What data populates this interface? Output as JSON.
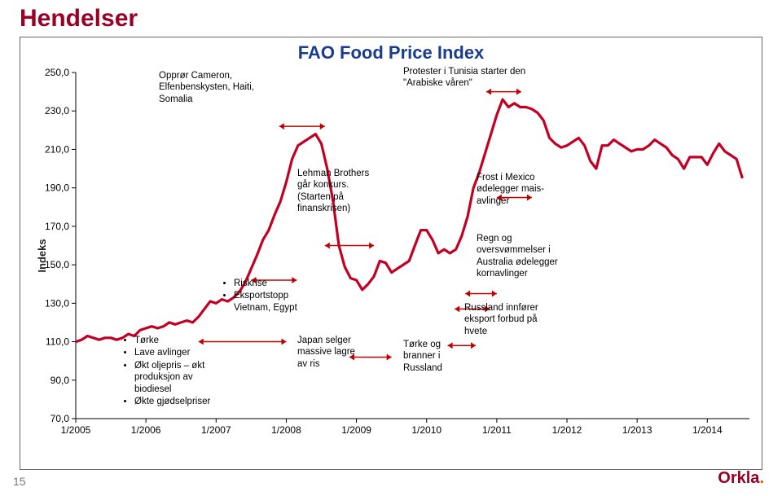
{
  "title": "Hendelser",
  "slide_number": "15",
  "logo": "Orkla",
  "chart": {
    "title": "FAO Food Price Index",
    "ylabel": "Indeks",
    "title_color": "#1a3c8c",
    "line_color": "#c30022",
    "line_width": 3.2,
    "ylim": [
      70,
      250
    ],
    "ytick_step": 20,
    "x_categories": [
      "1/2005",
      "1/2006",
      "1/2007",
      "1/2008",
      "1/2009",
      "1/2010",
      "1/2011",
      "1/2012",
      "1/2013",
      "1/2014"
    ],
    "xlim": [
      2005.0,
      2014.6
    ],
    "series": [
      {
        "x": 2005.0,
        "y": 110
      },
      {
        "x": 2005.083,
        "y": 111
      },
      {
        "x": 2005.167,
        "y": 113
      },
      {
        "x": 2005.25,
        "y": 112
      },
      {
        "x": 2005.333,
        "y": 111
      },
      {
        "x": 2005.417,
        "y": 112
      },
      {
        "x": 2005.5,
        "y": 112
      },
      {
        "x": 2005.583,
        "y": 111
      },
      {
        "x": 2005.667,
        "y": 112
      },
      {
        "x": 2005.75,
        "y": 114
      },
      {
        "x": 2005.833,
        "y": 113
      },
      {
        "x": 2005.917,
        "y": 116
      },
      {
        "x": 2006.0,
        "y": 117
      },
      {
        "x": 2006.083,
        "y": 118
      },
      {
        "x": 2006.167,
        "y": 117
      },
      {
        "x": 2006.25,
        "y": 118
      },
      {
        "x": 2006.333,
        "y": 120
      },
      {
        "x": 2006.417,
        "y": 119
      },
      {
        "x": 2006.5,
        "y": 120
      },
      {
        "x": 2006.583,
        "y": 121
      },
      {
        "x": 2006.667,
        "y": 120
      },
      {
        "x": 2006.75,
        "y": 123
      },
      {
        "x": 2006.833,
        "y": 127
      },
      {
        "x": 2006.917,
        "y": 131
      },
      {
        "x": 2007.0,
        "y": 130
      },
      {
        "x": 2007.083,
        "y": 132
      },
      {
        "x": 2007.167,
        "y": 131
      },
      {
        "x": 2007.25,
        "y": 133
      },
      {
        "x": 2007.333,
        "y": 136
      },
      {
        "x": 2007.417,
        "y": 141
      },
      {
        "x": 2007.5,
        "y": 148
      },
      {
        "x": 2007.583,
        "y": 155
      },
      {
        "x": 2007.667,
        "y": 163
      },
      {
        "x": 2007.75,
        "y": 168
      },
      {
        "x": 2007.833,
        "y": 176
      },
      {
        "x": 2007.917,
        "y": 183
      },
      {
        "x": 2008.0,
        "y": 193
      },
      {
        "x": 2008.083,
        "y": 205
      },
      {
        "x": 2008.167,
        "y": 212
      },
      {
        "x": 2008.25,
        "y": 214
      },
      {
        "x": 2008.333,
        "y": 216
      },
      {
        "x": 2008.417,
        "y": 218
      },
      {
        "x": 2008.5,
        "y": 213
      },
      {
        "x": 2008.583,
        "y": 200
      },
      {
        "x": 2008.667,
        "y": 183
      },
      {
        "x": 2008.75,
        "y": 160
      },
      {
        "x": 2008.833,
        "y": 149
      },
      {
        "x": 2008.917,
        "y": 143
      },
      {
        "x": 2009.0,
        "y": 142
      },
      {
        "x": 2009.083,
        "y": 137
      },
      {
        "x": 2009.167,
        "y": 140
      },
      {
        "x": 2009.25,
        "y": 144
      },
      {
        "x": 2009.333,
        "y": 152
      },
      {
        "x": 2009.417,
        "y": 151
      },
      {
        "x": 2009.5,
        "y": 146
      },
      {
        "x": 2009.583,
        "y": 148
      },
      {
        "x": 2009.667,
        "y": 150
      },
      {
        "x": 2009.75,
        "y": 152
      },
      {
        "x": 2009.833,
        "y": 160
      },
      {
        "x": 2009.917,
        "y": 168
      },
      {
        "x": 2010.0,
        "y": 168
      },
      {
        "x": 2010.083,
        "y": 163
      },
      {
        "x": 2010.167,
        "y": 156
      },
      {
        "x": 2010.25,
        "y": 158
      },
      {
        "x": 2010.333,
        "y": 156
      },
      {
        "x": 2010.417,
        "y": 158
      },
      {
        "x": 2010.5,
        "y": 165
      },
      {
        "x": 2010.583,
        "y": 175
      },
      {
        "x": 2010.667,
        "y": 190
      },
      {
        "x": 2010.75,
        "y": 198
      },
      {
        "x": 2010.833,
        "y": 208
      },
      {
        "x": 2010.917,
        "y": 218
      },
      {
        "x": 2011.0,
        "y": 228
      },
      {
        "x": 2011.083,
        "y": 236
      },
      {
        "x": 2011.167,
        "y": 232
      },
      {
        "x": 2011.25,
        "y": 234
      },
      {
        "x": 2011.333,
        "y": 232
      },
      {
        "x": 2011.417,
        "y": 232
      },
      {
        "x": 2011.5,
        "y": 231
      },
      {
        "x": 2011.583,
        "y": 229
      },
      {
        "x": 2011.667,
        "y": 225
      },
      {
        "x": 2011.75,
        "y": 216
      },
      {
        "x": 2011.833,
        "y": 213
      },
      {
        "x": 2011.917,
        "y": 211
      },
      {
        "x": 2012.0,
        "y": 212
      },
      {
        "x": 2012.083,
        "y": 214
      },
      {
        "x": 2012.167,
        "y": 216
      },
      {
        "x": 2012.25,
        "y": 212
      },
      {
        "x": 2012.333,
        "y": 204
      },
      {
        "x": 2012.417,
        "y": 200
      },
      {
        "x": 2012.5,
        "y": 212
      },
      {
        "x": 2012.583,
        "y": 212
      },
      {
        "x": 2012.667,
        "y": 215
      },
      {
        "x": 2012.75,
        "y": 213
      },
      {
        "x": 2012.833,
        "y": 211
      },
      {
        "x": 2012.917,
        "y": 209
      },
      {
        "x": 2013.0,
        "y": 210
      },
      {
        "x": 2013.083,
        "y": 210
      },
      {
        "x": 2013.167,
        "y": 212
      },
      {
        "x": 2013.25,
        "y": 215
      },
      {
        "x": 2013.333,
        "y": 213
      },
      {
        "x": 2013.417,
        "y": 211
      },
      {
        "x": 2013.5,
        "y": 207
      },
      {
        "x": 2013.583,
        "y": 205
      },
      {
        "x": 2013.667,
        "y": 200
      },
      {
        "x": 2013.75,
        "y": 206
      },
      {
        "x": 2013.833,
        "y": 206
      },
      {
        "x": 2013.917,
        "y": 206
      },
      {
        "x": 2014.0,
        "y": 202
      },
      {
        "x": 2014.083,
        "y": 208
      },
      {
        "x": 2014.167,
        "y": 213
      },
      {
        "x": 2014.25,
        "y": 209
      },
      {
        "x": 2014.333,
        "y": 207
      },
      {
        "x": 2014.417,
        "y": 205
      },
      {
        "x": 2014.5,
        "y": 195
      }
    ],
    "axis_color": "#000000",
    "tick_color": "#000000",
    "background_color": "#ffffff",
    "arrow_color": "#c00000"
  },
  "annotations": {
    "a1_header": "Opprør Cameron, Elfenbenskysten, Haiti, Somalia",
    "a2_tunisia1": "Protester i Tunisia starter den",
    "a2_tunisia2": "\"Arabiske våren\"",
    "a3_lehman": "Lehman Brothers går konkurs. (Starten på finanskrisen)",
    "a4_frost": "Frost i Mexico ødelegger mais-avlinger",
    "a5_regn": "Regn og oversvømmelser i Australia ødelegger kornavlinger",
    "a6_russland_eksport": "Russland innfører eksport forbud på hvete",
    "a7_torke_russland": "Tørke og branner i Russland",
    "a8_japan": "Japan selger massive lagre av ris",
    "a9_riskrise_l1": "Riskrise",
    "a9_riskrise_l2": "Eksportstopp Vietnam, Egypt",
    "a10_biodiesel_l1": "Tørke",
    "a10_biodiesel_l2": "Lave avlinger",
    "a10_biodiesel_l3": "Økt oljepris – økt produksjon av biodiesel",
    "a10_biodiesel_l4": "Økte gjødselpriser"
  }
}
